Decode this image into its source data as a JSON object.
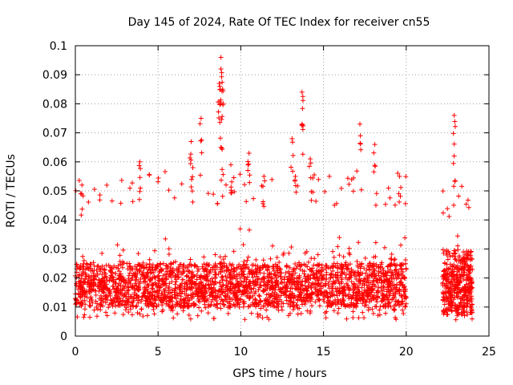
{
  "chart_data": {
    "type": "scatter",
    "title": "Day 145 of 2024, Rate Of TEC Index for receiver cn55",
    "xlabel": "GPS time / hours",
    "ylabel": "ROTI / TECUs",
    "xlim": [
      0,
      25
    ],
    "ylim": [
      0,
      0.1
    ],
    "xticks": [
      "0",
      "5",
      "10",
      "15",
      "20",
      "25"
    ],
    "yticks": [
      "0",
      "0.01",
      "0.02",
      "0.03",
      "0.04",
      "0.05",
      "0.06",
      "0.07",
      "0.08",
      "0.09",
      "0.1"
    ],
    "grid": true,
    "marker": "+",
    "color": "#ff0000",
    "series": [
      {
        "name": "ROTI",
        "segments": [
          {
            "x_range": [
              0.0,
              20.0
            ],
            "typical_range": [
              0.005,
              0.045
            ],
            "dense_core": [
              0.01,
              0.025
            ]
          },
          {
            "x_range": [
              22.2,
              24.0
            ],
            "typical_range": [
              0.005,
              0.04
            ],
            "dense_core": [
              0.008,
              0.03
            ]
          }
        ],
        "notable_points": [
          {
            "x": 8.8,
            "y": 0.096
          },
          {
            "x": 8.8,
            "y": 0.092
          },
          {
            "x": 8.7,
            "y": 0.087
          },
          {
            "x": 8.9,
            "y": 0.085
          },
          {
            "x": 13.7,
            "y": 0.084
          },
          {
            "x": 8.8,
            "y": 0.08
          },
          {
            "x": 22.9,
            "y": 0.076
          },
          {
            "x": 7.6,
            "y": 0.075
          },
          {
            "x": 17.2,
            "y": 0.073
          },
          {
            "x": 13.7,
            "y": 0.073
          },
          {
            "x": 7.0,
            "y": 0.067
          },
          {
            "x": 13.1,
            "y": 0.068
          },
          {
            "x": 18.1,
            "y": 0.066
          },
          {
            "x": 8.8,
            "y": 0.065
          },
          {
            "x": 10.5,
            "y": 0.063
          },
          {
            "x": 22.9,
            "y": 0.062
          },
          {
            "x": 3.9,
            "y": 0.06
          },
          {
            "x": 14.2,
            "y": 0.061
          },
          {
            "x": 9.4,
            "y": 0.059
          },
          {
            "x": 11.4,
            "y": 0.055
          },
          {
            "x": 19.6,
            "y": 0.055
          },
          {
            "x": 0.4,
            "y": 0.052
          },
          {
            "x": 7.1,
            "y": 0.058
          },
          {
            "x": 13.3,
            "y": 0.055
          }
        ]
      }
    ]
  }
}
